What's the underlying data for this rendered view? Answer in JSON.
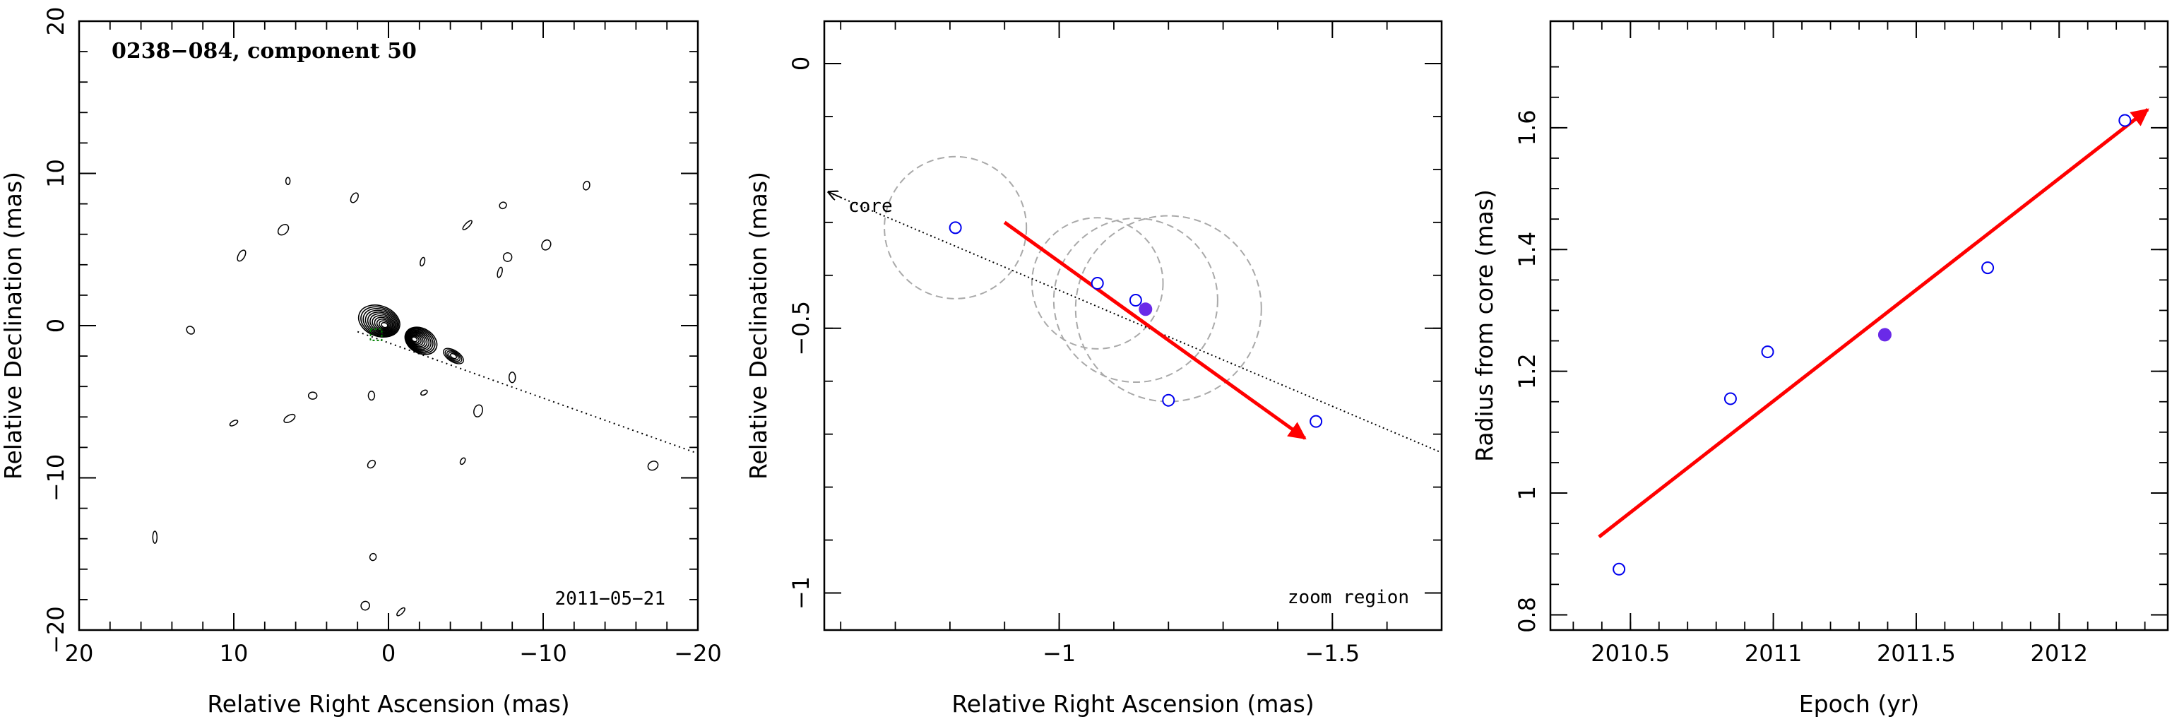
{
  "chart_data": [
    {
      "type": "contour",
      "title": "0238−084, component 50",
      "date_label": "2011−05−21",
      "xlabel": "Relative Right Ascension (mas)",
      "ylabel": "Relative Declination (mas)",
      "xlim": [
        20,
        -20
      ],
      "ylim": [
        -20,
        20
      ],
      "xticks": [
        20,
        10,
        0,
        -10,
        -20
      ],
      "yticks": [
        20,
        10,
        0,
        -10,
        -20
      ],
      "xtick_labels": [
        "20",
        "10",
        "0",
        "−10",
        "−20"
      ],
      "ytick_labels": [
        "20",
        "10",
        "0",
        "−10",
        "−20"
      ],
      "jet_direction_line": {
        "from": [
          2,
          -0.4
        ],
        "to": [
          -20,
          -8.4
        ]
      },
      "knot_position": [
        0.8,
        -0.6
      ],
      "core_islands": [
        [
          0.6,
          0.3
        ],
        [
          -2.1,
          -1.0
        ]
      ],
      "noise_islands": [
        [
          6.5,
          9.5
        ],
        [
          -12.8,
          9.2
        ],
        [
          -10.2,
          5.3
        ],
        [
          -5.1,
          6.6
        ],
        [
          -7.4,
          7.9
        ],
        [
          -7.7,
          4.5
        ],
        [
          -7.2,
          3.5
        ],
        [
          9.5,
          4.6
        ],
        [
          12.8,
          -0.3
        ],
        [
          10.0,
          -6.4
        ],
        [
          -8.0,
          -3.4
        ],
        [
          -5.8,
          -5.6
        ],
        [
          -4.8,
          -8.9
        ],
        [
          1.1,
          -9.1
        ],
        [
          -17.1,
          -9.2
        ],
        [
          15.1,
          -13.9
        ],
        [
          1.0,
          -15.2
        ],
        [
          1.5,
          -18.4
        ],
        [
          -0.8,
          -18.8
        ],
        [
          6.4,
          -6.1
        ],
        [
          4.9,
          -4.6
        ],
        [
          -2.2,
          4.2
        ],
        [
          2.2,
          8.4
        ],
        [
          6.8,
          6.3
        ],
        [
          -2.3,
          -4.4
        ],
        [
          1.1,
          -4.6
        ]
      ]
    },
    {
      "type": "scatter",
      "annotation": "zoom region",
      "core_label": "core",
      "xlabel": "Relative Right Ascension (mas)",
      "ylabel": "Relative Declination (mas)",
      "xlim": [
        -0.57,
        -1.7
      ],
      "ylim": [
        -1.07,
        0.08
      ],
      "xticks": [
        -1,
        -1.5
      ],
      "yticks": [
        0,
        -0.5,
        -1
      ],
      "xtick_labels": [
        "−1",
        "−1.5"
      ],
      "ytick_labels": [
        "0",
        "−0.5",
        "−1"
      ],
      "points_open": [
        [
          -0.81,
          -0.31
        ],
        [
          -1.07,
          -0.415
        ],
        [
          -1.14,
          -0.447
        ],
        [
          -1.2,
          -0.636
        ],
        [
          -1.47,
          -0.676
        ]
      ],
      "points_filled": [
        [
          -1.158,
          -0.464
        ]
      ],
      "error_circles": [
        {
          "center": [
            -0.81,
            -0.31
          ],
          "radius": 0.13
        },
        {
          "center": [
            -1.07,
            -0.415
          ],
          "radius": 0.12
        },
        {
          "center": [
            -1.14,
            -0.447
          ],
          "radius": 0.15
        },
        {
          "center": [
            -1.2,
            -0.463
          ],
          "radius": 0.17
        }
      ],
      "velocity_arrow": {
        "from": [
          -0.9,
          -0.3
        ],
        "to": [
          -1.45,
          -0.708
        ]
      },
      "core_line": {
        "from": [
          -0.57,
          -0.24
        ],
        "to": [
          -1.7,
          -0.735
        ]
      }
    },
    {
      "type": "scatter",
      "xlabel": "Epoch (yr)",
      "ylabel": "Radius from core (mas)",
      "xlim": [
        2010.22,
        2012.38
      ],
      "ylim": [
        0.775,
        1.775
      ],
      "xticks": [
        2010.5,
        2011,
        2011.5,
        2012
      ],
      "yticks": [
        0.8,
        1,
        1.2,
        1.4,
        1.6
      ],
      "xtick_labels": [
        "2010.5",
        "2011",
        "2011.5",
        "2012"
      ],
      "ytick_labels": [
        "0.8",
        "1",
        "1.2",
        "1.4",
        "1.6"
      ],
      "points_open": [
        [
          2010.46,
          0.875
        ],
        [
          2010.85,
          1.155
        ],
        [
          2010.98,
          1.232
        ],
        [
          2011.75,
          1.37
        ],
        [
          2012.23,
          1.612
        ]
      ],
      "points_filled": [
        [
          2011.39,
          1.26
        ]
      ],
      "fit_arrow": {
        "from": [
          2010.39,
          0.928
        ],
        "to": [
          2012.31,
          1.63
        ]
      }
    }
  ],
  "colors": {
    "arrow": "#ff0000",
    "open_marker": "#0000ee",
    "filled_marker": "#6a2ae8",
    "error_circle": "#a9a9a9",
    "contour": "#000000",
    "knot_marker": "#008000"
  }
}
